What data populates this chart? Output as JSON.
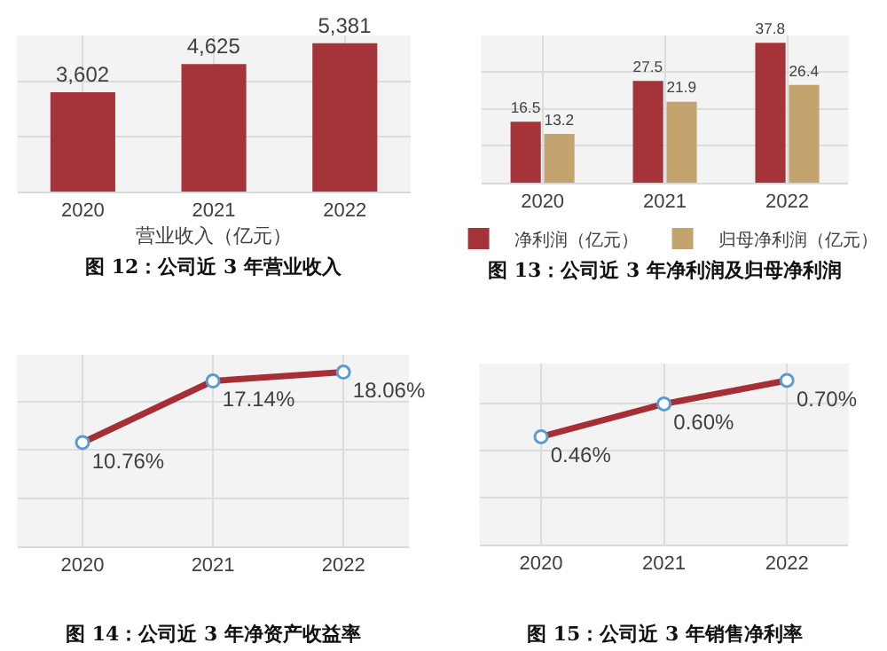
{
  "chart_data": [
    {
      "type": "bar",
      "title": "图 12：公司近 3 年营业收入",
      "xlabel": "营业收入（亿元）",
      "categories": [
        "2020",
        "2021",
        "2022"
      ],
      "series": [
        {
          "color": "#a4333a",
          "values": [
            3602,
            4625,
            5381
          ],
          "value_labels": [
            "3,602",
            "4,625",
            "5,381"
          ]
        }
      ],
      "grid": true,
      "legend": false
    },
    {
      "type": "bar",
      "title": "图 13：公司近 3 年净利润及归母净利润",
      "categories": [
        "2020",
        "2021",
        "2022"
      ],
      "series": [
        {
          "name": "净利润（亿元）",
          "color": "#a4333a",
          "values": [
            16.5,
            27.5,
            37.8
          ]
        },
        {
          "name": "归母净利润（亿元）",
          "color": "#c4a46e",
          "values": [
            13.2,
            21.9,
            26.4
          ]
        }
      ],
      "data_labels": true,
      "grid": true,
      "legend": "bottom"
    },
    {
      "type": "line",
      "title": "图 14：公司近 3 年净资产收益率",
      "categories": [
        "2020",
        "2021",
        "2022"
      ],
      "series": [
        {
          "color": "#a52f35",
          "values": [
            10.76,
            17.14,
            18.06
          ],
          "value_labels": [
            "10.76%",
            "17.14%",
            "18.06%"
          ]
        }
      ],
      "grid": true,
      "legend": false,
      "marker": "circle",
      "line_style": "solid"
    },
    {
      "type": "line",
      "title": "图 15：公司近 3 年销售净利率",
      "categories": [
        "2020",
        "2021",
        "2022"
      ],
      "series": [
        {
          "color": "#a52f35",
          "values": [
            0.46,
            0.6,
            0.7
          ],
          "value_labels": [
            "0.46%",
            "0.60%",
            "0.70%"
          ]
        }
      ],
      "grid": true,
      "legend": false,
      "marker": "circle",
      "line_style": "solid"
    }
  ]
}
